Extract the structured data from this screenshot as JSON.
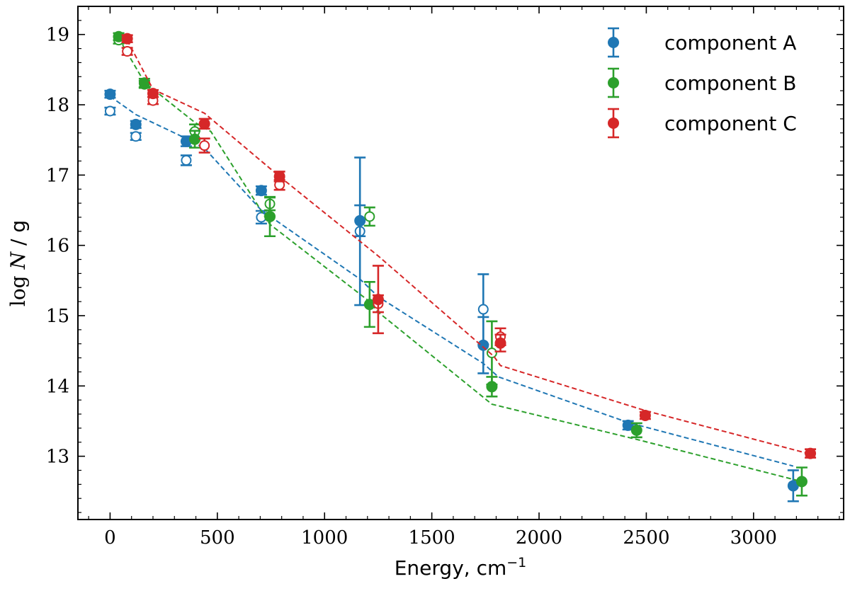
{
  "chart_data": {
    "type": "scatter",
    "xlabel": "Energy, cm",
    "xlabel_superscript": "−1",
    "ylabel_prefix": "log",
    "ylabel_var": "N",
    "ylabel_suffix": " / g",
    "xlim": [
      -150,
      3420
    ],
    "ylim": [
      12.1,
      19.4
    ],
    "xticks": [
      0,
      500,
      1000,
      1500,
      2000,
      2500,
      3000
    ],
    "yticks": [
      13,
      14,
      15,
      16,
      17,
      18,
      19
    ],
    "legend_position": "top-right",
    "grid": false,
    "series": [
      {
        "name": "component A",
        "color": "#1f77b4",
        "filled": [
          {
            "x": 0,
            "y": 18.15,
            "err": 0.05
          },
          {
            "x": 120,
            "y": 17.72,
            "err": 0.05
          },
          {
            "x": 355,
            "y": 17.48,
            "err": 0.07
          },
          {
            "x": 705,
            "y": 16.78,
            "err": 0.06
          },
          {
            "x": 1165,
            "y": 16.35,
            "err": 0.22
          },
          {
            "x": 1740,
            "y": 14.58,
            "err": 0.4
          },
          {
            "x": 2415,
            "y": 13.44,
            "err": 0.06
          },
          {
            "x": 3185,
            "y": 12.58,
            "err": 0.22
          }
        ],
        "open": [
          {
            "x": 0,
            "y": 17.91,
            "err": 0.05
          },
          {
            "x": 120,
            "y": 17.55,
            "err": 0.05
          },
          {
            "x": 355,
            "y": 17.21,
            "err": 0.07
          },
          {
            "x": 705,
            "y": 16.4,
            "err": 0.09
          },
          {
            "x": 1165,
            "y": 16.2,
            "err": 1.05
          },
          {
            "x": 1740,
            "y": 15.09,
            "err": 0.5
          }
        ],
        "model": [
          {
            "x": 0,
            "y": 18.12
          },
          {
            "x": 120,
            "y": 17.86
          },
          {
            "x": 355,
            "y": 17.52
          },
          {
            "x": 440,
            "y": 17.38
          },
          {
            "x": 705,
            "y": 16.5
          },
          {
            "x": 1165,
            "y": 15.52
          },
          {
            "x": 1250,
            "y": 15.27
          },
          {
            "x": 1740,
            "y": 14.32
          },
          {
            "x": 1810,
            "y": 14.13
          },
          {
            "x": 2415,
            "y": 13.48
          },
          {
            "x": 3185,
            "y": 12.86
          }
        ]
      },
      {
        "name": "component B",
        "color": "#2ca02c",
        "filled": [
          {
            "x": 40,
            "y": 18.97,
            "err": 0.05
          },
          {
            "x": 160,
            "y": 18.31,
            "err": 0.06
          },
          {
            "x": 395,
            "y": 17.51,
            "err": 0.12
          },
          {
            "x": 745,
            "y": 16.41,
            "err": 0.28
          },
          {
            "x": 1210,
            "y": 15.16,
            "err": 0.32
          },
          {
            "x": 1780,
            "y": 13.99,
            "err": 0.14
          },
          {
            "x": 2455,
            "y": 13.37,
            "err": 0.1
          },
          {
            "x": 3225,
            "y": 12.64,
            "err": 0.2
          }
        ],
        "open": [
          {
            "x": 40,
            "y": 18.92,
            "err": 0.05
          },
          {
            "x": 160,
            "y": 18.29,
            "err": 0.05
          },
          {
            "x": 395,
            "y": 17.62,
            "err": 0.1
          },
          {
            "x": 745,
            "y": 16.59,
            "err": 0.09
          },
          {
            "x": 1210,
            "y": 16.41,
            "err": 0.13
          },
          {
            "x": 1780,
            "y": 14.47,
            "err": 0.45
          }
        ],
        "model": [
          {
            "x": 40,
            "y": 18.95
          },
          {
            "x": 160,
            "y": 18.32
          },
          {
            "x": 395,
            "y": 17.75
          },
          {
            "x": 470,
            "y": 17.62
          },
          {
            "x": 745,
            "y": 16.3
          },
          {
            "x": 1210,
            "y": 15.2
          },
          {
            "x": 1250,
            "y": 15.05
          },
          {
            "x": 1780,
            "y": 13.74
          },
          {
            "x": 2455,
            "y": 13.24
          },
          {
            "x": 3225,
            "y": 12.64
          }
        ]
      },
      {
        "name": "component C",
        "color": "#d62728",
        "filled": [
          {
            "x": 80,
            "y": 18.94,
            "err": 0.05
          },
          {
            "x": 200,
            "y": 18.16,
            "err": 0.05
          },
          {
            "x": 440,
            "y": 17.73,
            "err": 0.07
          },
          {
            "x": 790,
            "y": 16.98,
            "err": 0.07
          },
          {
            "x": 1250,
            "y": 15.23,
            "err": 0.48
          },
          {
            "x": 1820,
            "y": 14.61,
            "err": 0.12
          },
          {
            "x": 2495,
            "y": 13.58,
            "err": 0.05
          },
          {
            "x": 3265,
            "y": 13.04,
            "err": 0.06
          }
        ],
        "open": [
          {
            "x": 80,
            "y": 18.76,
            "err": 0.05
          },
          {
            "x": 200,
            "y": 18.06,
            "err": 0.05
          },
          {
            "x": 440,
            "y": 17.42,
            "err": 0.1
          },
          {
            "x": 790,
            "y": 16.86,
            "err": 0.07
          },
          {
            "x": 1250,
            "y": 15.17,
            "err": 0.12
          },
          {
            "x": 1820,
            "y": 14.7,
            "err": 0.12
          }
        ],
        "model": [
          {
            "x": 80,
            "y": 18.92
          },
          {
            "x": 200,
            "y": 18.22
          },
          {
            "x": 440,
            "y": 17.88
          },
          {
            "x": 790,
            "y": 16.98
          },
          {
            "x": 1250,
            "y": 15.85
          },
          {
            "x": 1790,
            "y": 14.42
          },
          {
            "x": 1820,
            "y": 14.29
          },
          {
            "x": 2495,
            "y": 13.65
          },
          {
            "x": 3265,
            "y": 13.03
          }
        ]
      }
    ]
  }
}
